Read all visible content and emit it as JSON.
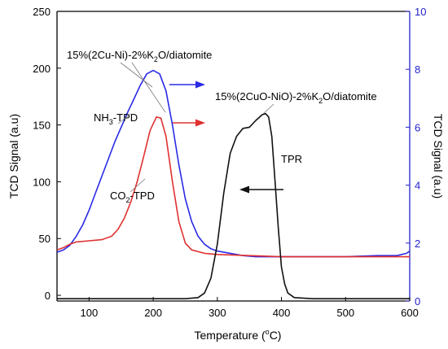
{
  "chart_data": {
    "type": "line",
    "xlabel": "Temperature (°C)",
    "xlabel_parts": {
      "pre": "Temperature (",
      "sup": "o",
      "post": "C)"
    },
    "ylabel_left": "TCD Signal (a.u)",
    "ylabel_right": "TCD Signal (a.u)",
    "xlim": [
      50,
      600
    ],
    "ylim_left": [
      -5,
      250
    ],
    "ylim_right": [
      0,
      10
    ],
    "xticks": [
      100,
      200,
      300,
      400,
      500,
      600
    ],
    "yticks_left": [
      0,
      50,
      100,
      150,
      200,
      250
    ],
    "yticks_right": [
      0,
      2,
      4,
      6,
      8,
      10
    ],
    "colors": {
      "nh3": "#2a2ae6",
      "co2": "#e03030",
      "tpr": "#111111",
      "right_axis": "#2222cc"
    },
    "series": [
      {
        "name": "NH3-TPD",
        "axis": "left",
        "color": "#2a2ae6",
        "points": [
          [
            50,
            38
          ],
          [
            60,
            40
          ],
          [
            70,
            44
          ],
          [
            80,
            52
          ],
          [
            90,
            62
          ],
          [
            100,
            75
          ],
          [
            110,
            90
          ],
          [
            120,
            105
          ],
          [
            130,
            120
          ],
          [
            140,
            135
          ],
          [
            150,
            148
          ],
          [
            160,
            161
          ],
          [
            170,
            173
          ],
          [
            180,
            185
          ],
          [
            190,
            195
          ],
          [
            200,
            198
          ],
          [
            210,
            195
          ],
          [
            220,
            180
          ],
          [
            230,
            150
          ],
          [
            240,
            115
          ],
          [
            250,
            85
          ],
          [
            260,
            65
          ],
          [
            270,
            52
          ],
          [
            280,
            45
          ],
          [
            290,
            41
          ],
          [
            300,
            39
          ],
          [
            320,
            37
          ],
          [
            340,
            35
          ],
          [
            360,
            34
          ],
          [
            380,
            34
          ],
          [
            400,
            34
          ],
          [
            450,
            34
          ],
          [
            500,
            34
          ],
          [
            550,
            35
          ],
          [
            580,
            35
          ],
          [
            595,
            37
          ],
          [
            600,
            39
          ]
        ]
      },
      {
        "name": "CO2-TPD",
        "axis": "left",
        "color": "#e03030",
        "points": [
          [
            50,
            40
          ],
          [
            60,
            42
          ],
          [
            70,
            45
          ],
          [
            80,
            47
          ],
          [
            100,
            48
          ],
          [
            120,
            49
          ],
          [
            135,
            52
          ],
          [
            145,
            58
          ],
          [
            155,
            68
          ],
          [
            165,
            82
          ],
          [
            175,
            100
          ],
          [
            185,
            122
          ],
          [
            195,
            145
          ],
          [
            205,
            157
          ],
          [
            212,
            156
          ],
          [
            220,
            140
          ],
          [
            230,
            100
          ],
          [
            240,
            65
          ],
          [
            250,
            46
          ],
          [
            260,
            40
          ],
          [
            280,
            37
          ],
          [
            300,
            36
          ],
          [
            350,
            35
          ],
          [
            400,
            34
          ],
          [
            450,
            34
          ],
          [
            500,
            34
          ],
          [
            550,
            34
          ],
          [
            600,
            34
          ]
        ]
      },
      {
        "name": "TPR",
        "axis": "left",
        "color": "#111111",
        "points": [
          [
            50,
            -3
          ],
          [
            100,
            -3
          ],
          [
            150,
            -3
          ],
          [
            200,
            -3
          ],
          [
            250,
            -3
          ],
          [
            270,
            -2
          ],
          [
            280,
            2
          ],
          [
            290,
            15
          ],
          [
            300,
            45
          ],
          [
            310,
            90
          ],
          [
            320,
            125
          ],
          [
            330,
            140
          ],
          [
            340,
            147
          ],
          [
            350,
            148
          ],
          [
            360,
            154
          ],
          [
            370,
            159
          ],
          [
            375,
            160
          ],
          [
            380,
            157
          ],
          [
            385,
            140
          ],
          [
            390,
            100
          ],
          [
            395,
            60
          ],
          [
            400,
            25
          ],
          [
            405,
            10
          ],
          [
            410,
            2
          ],
          [
            420,
            -2
          ],
          [
            450,
            -3
          ],
          [
            500,
            -3
          ],
          [
            550,
            -3
          ],
          [
            600,
            -3
          ]
        ]
      }
    ],
    "annotations": {
      "cu_ni": "15%(2Cu-Ni)-2%K2O/diatomite",
      "cu_ni_parts": {
        "a": "15%(2Cu-Ni)-2%K",
        "sub": "2",
        "b": "O/diatomite"
      },
      "cuo_nio": "15%(2CuO-NiO)-2%K2O/diatomite",
      "cuo_nio_parts": {
        "a": "15%(2CuO-NiO)-2%K",
        "sub": "2",
        "b": "O/diatomite"
      },
      "nh3": "NH3-TPD",
      "nh3_parts": {
        "a": "NH",
        "sub": "3",
        "b": "-TPD"
      },
      "co2": "CO2-TPD",
      "co2_parts": {
        "a": "CO",
        "sub": "2",
        "b": "-TPD"
      },
      "tpr": "TPR"
    }
  }
}
